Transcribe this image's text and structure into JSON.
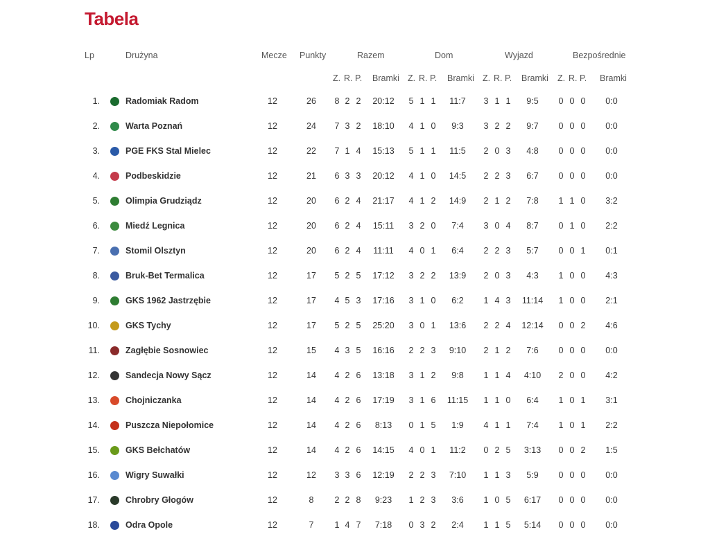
{
  "title": "Tabela",
  "headers": {
    "lp": "Lp",
    "team": "Drużyna",
    "matches": "Mecze",
    "points": "Punkty",
    "groups": [
      "Razem",
      "Dom",
      "Wyjazd",
      "Bezpośrednie"
    ],
    "sub_z": "Z.",
    "sub_r": "R.",
    "sub_p": "P.",
    "sub_goals": "Bramki"
  },
  "rows": [
    {
      "pos": "1.",
      "team": "Radomiak Radom",
      "crest_color": "#1a6b2e",
      "m": "12",
      "pts": "26",
      "t": [
        "8",
        "2",
        "2",
        "20:12"
      ],
      "h": [
        "5",
        "1",
        "1",
        "11:7"
      ],
      "a": [
        "3",
        "1",
        "1",
        "9:5"
      ],
      "d": [
        "0",
        "0",
        "0",
        "0:0"
      ]
    },
    {
      "pos": "2.",
      "team": "Warta Poznań",
      "crest_color": "#2f8a4a",
      "m": "12",
      "pts": "24",
      "t": [
        "7",
        "3",
        "2",
        "18:10"
      ],
      "h": [
        "4",
        "1",
        "0",
        "9:3"
      ],
      "a": [
        "3",
        "2",
        "2",
        "9:7"
      ],
      "d": [
        "0",
        "0",
        "0",
        "0:0"
      ]
    },
    {
      "pos": "3.",
      "team": "PGE FKS Stal Mielec",
      "crest_color": "#2a5aa8",
      "m": "12",
      "pts": "22",
      "t": [
        "7",
        "1",
        "4",
        "15:13"
      ],
      "h": [
        "5",
        "1",
        "1",
        "11:5"
      ],
      "a": [
        "2",
        "0",
        "3",
        "4:8"
      ],
      "d": [
        "0",
        "0",
        "0",
        "0:0"
      ]
    },
    {
      "pos": "4.",
      "team": "Podbeskidzie",
      "crest_color": "#c43a4a",
      "m": "12",
      "pts": "21",
      "t": [
        "6",
        "3",
        "3",
        "20:12"
      ],
      "h": [
        "4",
        "1",
        "0",
        "14:5"
      ],
      "a": [
        "2",
        "2",
        "3",
        "6:7"
      ],
      "d": [
        "0",
        "0",
        "0",
        "0:0"
      ]
    },
    {
      "pos": "5.",
      "team": "Olimpia Grudziądz",
      "crest_color": "#2e7d32",
      "m": "12",
      "pts": "20",
      "t": [
        "6",
        "2",
        "4",
        "21:17"
      ],
      "h": [
        "4",
        "1",
        "2",
        "14:9"
      ],
      "a": [
        "2",
        "1",
        "2",
        "7:8"
      ],
      "d": [
        "1",
        "1",
        "0",
        "3:2"
      ]
    },
    {
      "pos": "6.",
      "team": "Miedź Legnica",
      "crest_color": "#3b8a3e",
      "m": "12",
      "pts": "20",
      "t": [
        "6",
        "2",
        "4",
        "15:11"
      ],
      "h": [
        "3",
        "2",
        "0",
        "7:4"
      ],
      "a": [
        "3",
        "0",
        "4",
        "8:7"
      ],
      "d": [
        "0",
        "1",
        "0",
        "2:2"
      ]
    },
    {
      "pos": "7.",
      "team": "Stomil Olsztyn",
      "crest_color": "#4a6fb0",
      "m": "12",
      "pts": "20",
      "t": [
        "6",
        "2",
        "4",
        "11:11"
      ],
      "h": [
        "4",
        "0",
        "1",
        "6:4"
      ],
      "a": [
        "2",
        "2",
        "3",
        "5:7"
      ],
      "d": [
        "0",
        "0",
        "1",
        "0:1"
      ]
    },
    {
      "pos": "8.",
      "team": "Bruk-Bet Termalica",
      "crest_color": "#3a5aa0",
      "m": "12",
      "pts": "17",
      "t": [
        "5",
        "2",
        "5",
        "17:12"
      ],
      "h": [
        "3",
        "2",
        "2",
        "13:9"
      ],
      "a": [
        "2",
        "0",
        "3",
        "4:3"
      ],
      "d": [
        "1",
        "0",
        "0",
        "4:3"
      ]
    },
    {
      "pos": "9.",
      "team": "GKS 1962 Jastrzębie",
      "crest_color": "#2e7d32",
      "m": "12",
      "pts": "17",
      "t": [
        "4",
        "5",
        "3",
        "17:16"
      ],
      "h": [
        "3",
        "1",
        "0",
        "6:2"
      ],
      "a": [
        "1",
        "4",
        "3",
        "11:14"
      ],
      "d": [
        "1",
        "0",
        "0",
        "2:1"
      ]
    },
    {
      "pos": "10.",
      "team": "GKS Tychy",
      "crest_color": "#c49a1a",
      "m": "12",
      "pts": "17",
      "t": [
        "5",
        "2",
        "5",
        "25:20"
      ],
      "h": [
        "3",
        "0",
        "1",
        "13:6"
      ],
      "a": [
        "2",
        "2",
        "4",
        "12:14"
      ],
      "d": [
        "0",
        "0",
        "2",
        "4:6"
      ]
    },
    {
      "pos": "11.",
      "team": "Zagłębie Sosnowiec",
      "crest_color": "#8a2a2a",
      "m": "12",
      "pts": "15",
      "t": [
        "4",
        "3",
        "5",
        "16:16"
      ],
      "h": [
        "2",
        "2",
        "3",
        "9:10"
      ],
      "a": [
        "2",
        "1",
        "2",
        "7:6"
      ],
      "d": [
        "0",
        "0",
        "0",
        "0:0"
      ]
    },
    {
      "pos": "12.",
      "team": "Sandecja Nowy Sącz",
      "crest_color": "#333333",
      "m": "12",
      "pts": "14",
      "t": [
        "4",
        "2",
        "6",
        "13:18"
      ],
      "h": [
        "3",
        "1",
        "2",
        "9:8"
      ],
      "a": [
        "1",
        "1",
        "4",
        "4:10"
      ],
      "d": [
        "2",
        "0",
        "0",
        "4:2"
      ]
    },
    {
      "pos": "13.",
      "team": "Chojniczanka",
      "crest_color": "#d84a2a",
      "m": "12",
      "pts": "14",
      "t": [
        "4",
        "2",
        "6",
        "17:19"
      ],
      "h": [
        "3",
        "1",
        "6",
        "11:15"
      ],
      "a": [
        "1",
        "1",
        "0",
        "6:4"
      ],
      "d": [
        "1",
        "0",
        "1",
        "3:1"
      ]
    },
    {
      "pos": "14.",
      "team": "Puszcza Niepołomice",
      "crest_color": "#c4301a",
      "m": "12",
      "pts": "14",
      "t": [
        "4",
        "2",
        "6",
        "8:13"
      ],
      "h": [
        "0",
        "1",
        "5",
        "1:9"
      ],
      "a": [
        "4",
        "1",
        "1",
        "7:4"
      ],
      "d": [
        "1",
        "0",
        "1",
        "2:2"
      ]
    },
    {
      "pos": "15.",
      "team": "GKS Bełchatów",
      "crest_color": "#6a9a1a",
      "m": "12",
      "pts": "14",
      "t": [
        "4",
        "2",
        "6",
        "14:15"
      ],
      "h": [
        "4",
        "0",
        "1",
        "11:2"
      ],
      "a": [
        "0",
        "2",
        "5",
        "3:13"
      ],
      "d": [
        "0",
        "0",
        "2",
        "1:5"
      ]
    },
    {
      "pos": "16.",
      "team": "Wigry Suwałki",
      "crest_color": "#5a8ad0",
      "m": "12",
      "pts": "12",
      "t": [
        "3",
        "3",
        "6",
        "12:19"
      ],
      "h": [
        "2",
        "2",
        "3",
        "7:10"
      ],
      "a": [
        "1",
        "1",
        "3",
        "5:9"
      ],
      "d": [
        "0",
        "0",
        "0",
        "0:0"
      ]
    },
    {
      "pos": "17.",
      "team": "Chrobry Głogów",
      "crest_color": "#2a3a2a",
      "m": "12",
      "pts": "8",
      "t": [
        "2",
        "2",
        "8",
        "9:23"
      ],
      "h": [
        "1",
        "2",
        "3",
        "3:6"
      ],
      "a": [
        "1",
        "0",
        "5",
        "6:17"
      ],
      "d": [
        "0",
        "0",
        "0",
        "0:0"
      ]
    },
    {
      "pos": "18.",
      "team": "Odra Opole",
      "crest_color": "#2a4a9a",
      "m": "12",
      "pts": "7",
      "t": [
        "1",
        "4",
        "7",
        "7:18"
      ],
      "h": [
        "0",
        "3",
        "2",
        "2:4"
      ],
      "a": [
        "1",
        "1",
        "5",
        "5:14"
      ],
      "d": [
        "0",
        "0",
        "0",
        "0:0"
      ]
    }
  ]
}
